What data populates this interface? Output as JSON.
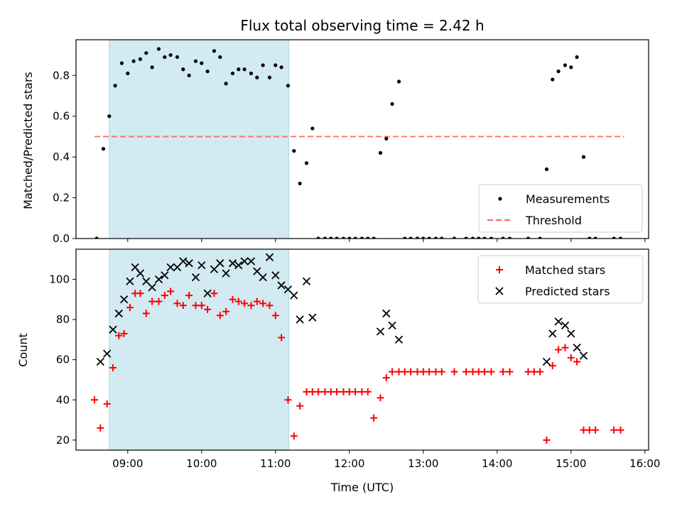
{
  "chart_data": [
    {
      "type": "scatter",
      "title": "Flux total observing time = 2.42 h",
      "xlabel": "",
      "ylabel": "Matched/Predicted stars",
      "xlim": [
        8.3,
        16.05
      ],
      "ylim": [
        0.0,
        0.975
      ],
      "yticks": [
        0.0,
        0.2,
        0.4,
        0.6,
        0.8
      ],
      "yticklabels": [
        "0.0",
        "0.2",
        "0.4",
        "0.6",
        "0.8"
      ],
      "shaded_interval": {
        "x": [
          8.75,
          11.18
        ],
        "color": "#add8e6"
      },
      "threshold": {
        "name": "Threshold",
        "y": 0.5,
        "x": [
          8.55,
          15.72
        ],
        "color": "#ff6060",
        "style": "dashed"
      },
      "legend": {
        "position": "lower-right",
        "entries": [
          "Measurements",
          "Threshold"
        ]
      },
      "series": [
        {
          "name": "Measurements",
          "marker": "dot",
          "color": "#000000",
          "x": [
            8.58,
            8.67,
            8.75,
            8.83,
            8.92,
            9.0,
            9.08,
            9.17,
            9.25,
            9.33,
            9.42,
            9.5,
            9.58,
            9.67,
            9.75,
            9.83,
            9.92,
            10.0,
            10.08,
            10.17,
            10.25,
            10.33,
            10.42,
            10.5,
            10.58,
            10.67,
            10.75,
            10.83,
            10.92,
            11.0,
            11.08,
            11.17,
            11.25,
            11.33,
            11.42,
            11.5,
            11.58,
            11.67,
            11.75,
            11.83,
            11.92,
            12.0,
            12.08,
            12.17,
            12.25,
            12.33,
            12.42,
            12.5,
            12.58,
            12.67,
            12.75,
            12.83,
            12.92,
            13.0,
            13.08,
            13.17,
            13.25,
            13.42,
            13.58,
            13.67,
            13.75,
            13.83,
            13.92,
            14.08,
            14.17,
            14.42,
            14.58,
            14.67,
            14.75,
            14.83,
            14.92,
            15.0,
            15.08,
            15.17,
            15.25,
            15.33,
            15.58,
            15.67
          ],
          "y": [
            0.0,
            0.44,
            0.6,
            0.75,
            0.86,
            0.81,
            0.87,
            0.88,
            0.91,
            0.84,
            0.93,
            0.89,
            0.9,
            0.89,
            0.83,
            0.8,
            0.87,
            0.86,
            0.82,
            0.92,
            0.89,
            0.76,
            0.81,
            0.83,
            0.83,
            0.81,
            0.79,
            0.85,
            0.79,
            0.85,
            0.84,
            0.75,
            0.43,
            0.27,
            0.37,
            0.54,
            0.0,
            0.0,
            0.0,
            0.0,
            0.0,
            0.0,
            0.0,
            0.0,
            0.0,
            0.0,
            0.42,
            0.49,
            0.66,
            0.77,
            0.0,
            0.0,
            0.0,
            0.0,
            0.0,
            0.0,
            0.0,
            0.0,
            0.0,
            0.0,
            0.0,
            0.0,
            0.0,
            0.0,
            0.0,
            0.0,
            0.0,
            0.34,
            0.78,
            0.82,
            0.85,
            0.84,
            0.89,
            0.4,
            0.0,
            0.0,
            0.0,
            0.0
          ]
        }
      ]
    },
    {
      "type": "scatter",
      "title": "",
      "xlabel": "Time (UTC)",
      "ylabel": "Count",
      "xlim": [
        8.3,
        16.05
      ],
      "ylim": [
        15,
        115
      ],
      "xticks": [
        9,
        10,
        11,
        12,
        13,
        14,
        15,
        16
      ],
      "xticklabels": [
        "09:00",
        "10:00",
        "11:00",
        "12:00",
        "13:00",
        "14:00",
        "15:00",
        "16:00"
      ],
      "yticks": [
        20,
        40,
        60,
        80,
        100
      ],
      "yticklabels": [
        "20",
        "40",
        "60",
        "80",
        "100"
      ],
      "shaded_interval": {
        "x": [
          8.75,
          11.18
        ],
        "color": "#add8e6"
      },
      "legend": {
        "position": "upper-right",
        "entries": [
          "Matched stars",
          "Predicted stars"
        ]
      },
      "series": [
        {
          "name": "Matched stars",
          "marker": "plus",
          "color": "#ff0000",
          "x": [
            8.55,
            8.63,
            8.72,
            8.8,
            8.88,
            8.95,
            9.03,
            9.1,
            9.17,
            9.25,
            9.33,
            9.42,
            9.5,
            9.58,
            9.67,
            9.75,
            9.83,
            9.92,
            10.0,
            10.08,
            10.17,
            10.25,
            10.33,
            10.42,
            10.5,
            10.58,
            10.67,
            10.75,
            10.83,
            10.92,
            11.0,
            11.08,
            11.17,
            11.25,
            11.33,
            11.42,
            11.5,
            11.58,
            11.67,
            11.75,
            11.83,
            11.92,
            12.0,
            12.08,
            12.17,
            12.25,
            12.33,
            12.42,
            12.5,
            12.58,
            12.67,
            12.75,
            12.83,
            12.92,
            13.0,
            13.08,
            13.17,
            13.25,
            13.42,
            13.58,
            13.67,
            13.75,
            13.83,
            13.92,
            14.08,
            14.17,
            14.42,
            14.5,
            14.58,
            14.67,
            14.75,
            14.83,
            14.92,
            15.0,
            15.08,
            15.17,
            15.25,
            15.33,
            15.58,
            15.67
          ],
          "y": [
            40,
            26,
            38,
            56,
            72,
            73,
            86,
            93,
            93,
            83,
            89,
            89,
            92,
            94,
            88,
            87,
            92,
            87,
            87,
            85,
            93,
            82,
            84,
            90,
            89,
            88,
            87,
            89,
            88,
            87,
            82,
            71,
            40,
            22,
            37,
            44,
            44,
            44,
            44,
            44,
            44,
            44,
            44,
            44,
            44,
            44,
            31,
            41,
            51,
            54,
            54,
            54,
            54,
            54,
            54,
            54,
            54,
            54,
            54,
            54,
            54,
            54,
            54,
            54,
            54,
            54,
            54,
            54,
            54,
            20,
            57,
            65,
            66,
            61,
            59,
            25,
            25,
            25,
            25,
            25
          ]
        },
        {
          "name": "Predicted stars",
          "marker": "x",
          "color": "#000000",
          "x": [
            8.63,
            8.72,
            8.8,
            8.88,
            8.95,
            9.03,
            9.1,
            9.17,
            9.25,
            9.33,
            9.42,
            9.5,
            9.58,
            9.67,
            9.75,
            9.83,
            9.92,
            10.0,
            10.08,
            10.17,
            10.25,
            10.33,
            10.42,
            10.5,
            10.58,
            10.67,
            10.75,
            10.83,
            10.92,
            11.0,
            11.08,
            11.17,
            11.25,
            11.33,
            11.42,
            11.5,
            12.42,
            12.5,
            12.58,
            12.67,
            14.67,
            14.75,
            14.83,
            14.92,
            15.0,
            15.08,
            15.17
          ],
          "y": [
            59,
            63,
            75,
            83,
            90,
            99,
            106,
            103,
            99,
            96,
            100,
            102,
            106,
            106,
            109,
            108,
            101,
            107,
            93,
            105,
            108,
            103,
            108,
            107,
            109,
            109,
            104,
            101,
            111,
            102,
            97,
            95,
            92,
            80,
            99,
            81,
            74,
            83,
            77,
            70,
            59,
            73,
            79,
            77,
            73,
            66,
            62
          ]
        }
      ]
    }
  ]
}
